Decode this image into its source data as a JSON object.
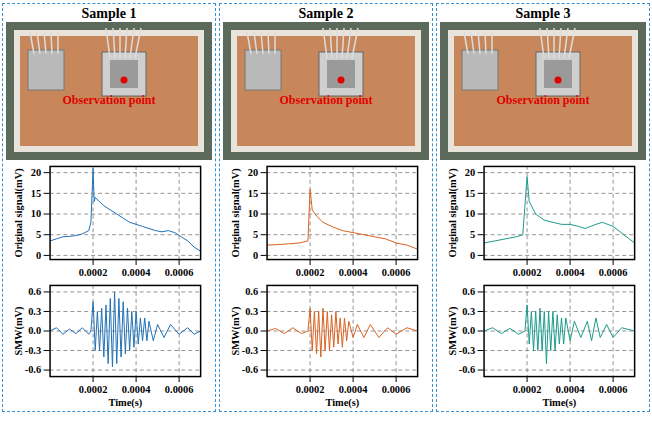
{
  "chart_data": [
    {
      "type": "line",
      "title": "Sample 1",
      "annotations": [
        "Observation point"
      ],
      "y_label": "Original signal(mV)",
      "color": "#1f6fb4",
      "grid": true,
      "xlim": [
        0,
        0.0007
      ],
      "xticks": [
        0.0002,
        0.0004,
        0.0006
      ],
      "ylim": [
        -1,
        21.5
      ],
      "yticks": [
        0,
        5,
        10,
        15,
        20
      ],
      "x": [
        0,
        3e-05,
        6e-05,
        9e-05,
        0.00012,
        0.00015,
        0.00018,
        0.00019,
        0.0002,
        0.000205,
        0.00021,
        0.00023,
        0.00025,
        0.00028,
        0.00031,
        0.00034,
        0.00037,
        0.0004,
        0.00043,
        0.00046,
        0.00049,
        0.00052,
        0.00055,
        0.00058,
        0.00061,
        0.00064,
        0.00067,
        0.0007
      ],
      "values": [
        3.5,
        4,
        4.5,
        4.6,
        4.8,
        5.2,
        6,
        8,
        21,
        13,
        14,
        13,
        12,
        11,
        10,
        9,
        8,
        7.5,
        7,
        6.5,
        6,
        5.7,
        6,
        5.5,
        4.5,
        3.5,
        2,
        1
      ]
    },
    {
      "type": "line",
      "x_label": "Time(s)",
      "y_label": "SMW(mV)",
      "color": "#1f6fb4",
      "grid": true,
      "xlim": [
        0,
        0.0007
      ],
      "xticks": [
        0.0002,
        0.0004,
        0.0006
      ],
      "ylim": [
        -0.7,
        0.7
      ],
      "yticks": [
        -0.6,
        -0.3,
        {
          "value": 0,
          "label": "0.0"
        },
        0.3,
        0.6
      ],
      "x": [
        0,
        3e-05,
        6e-05,
        9e-05,
        0.00012,
        0.00015,
        0.00018,
        0.00019,
        0.0002,
        0.00021,
        0.00022,
        0.00023,
        0.00024,
        0.00025,
        0.00026,
        0.00027,
        0.00028,
        0.00029,
        0.0003,
        0.00031,
        0.00032,
        0.00033,
        0.00034,
        0.00035,
        0.00036,
        0.00037,
        0.00038,
        0.00039,
        0.0004,
        0.00041,
        0.00042,
        0.00043,
        0.00044,
        0.00045,
        0.00046,
        0.00048,
        0.0005,
        0.00053,
        0.00056,
        0.0006,
        0.00064,
        0.00067,
        0.0007
      ],
      "values": [
        0,
        0.05,
        -0.05,
        0.03,
        -0.04,
        0.05,
        -0.05,
        0,
        0.45,
        -0.3,
        0.3,
        -0.3,
        0.35,
        -0.4,
        0.4,
        -0.5,
        0.5,
        -0.55,
        0.6,
        -0.5,
        0.5,
        -0.4,
        0.45,
        -0.35,
        0.35,
        -0.3,
        0.3,
        -0.25,
        0.3,
        -0.2,
        0.2,
        -0.15,
        0.2,
        -0.15,
        0.15,
        -0.15,
        0.1,
        -0.1,
        0.1,
        -0.05,
        0.05,
        -0.05,
        0
      ]
    },
    {
      "type": "line",
      "title": "Sample 2",
      "annotations": [
        "Observation point"
      ],
      "y_label": "Original signal(mV)",
      "color": "#d9601f",
      "grid": true,
      "xlim": [
        0,
        0.0007
      ],
      "xticks": [
        0.0002,
        0.0004,
        0.0006
      ],
      "ylim": [
        -1,
        21.5
      ],
      "yticks": [
        0,
        5,
        10,
        15,
        20
      ],
      "x": [
        0,
        5e-05,
        0.0001,
        0.00015,
        0.00019,
        0.0002,
        0.00021,
        0.00023,
        0.00026,
        0.0003,
        0.00035,
        0.0004,
        0.00045,
        0.0005,
        0.00055,
        0.0006,
        0.00065,
        0.0007
      ],
      "values": [
        2.5,
        2.6,
        2.8,
        3,
        3.5,
        16,
        11,
        9.5,
        8,
        7,
        6,
        5.5,
        5,
        4.5,
        4,
        3,
        2.5,
        1.5
      ]
    },
    {
      "type": "line",
      "x_label": "Time(s)",
      "y_label": "SMW(mV)",
      "color": "#d9601f",
      "grid": true,
      "xlim": [
        0,
        0.0007
      ],
      "xticks": [
        0.0002,
        0.0004,
        0.0006
      ],
      "ylim": [
        -0.7,
        0.7
      ],
      "yticks": [
        -0.6,
        -0.3,
        {
          "value": 0,
          "label": "0.0"
        },
        0.3,
        0.6
      ],
      "x": [
        0,
        4e-05,
        8e-05,
        0.00012,
        0.00016,
        0.00019,
        0.0002,
        0.00021,
        0.00022,
        0.00023,
        0.00024,
        0.00025,
        0.00026,
        0.00027,
        0.00028,
        0.00029,
        0.0003,
        0.00031,
        0.00032,
        0.00033,
        0.00034,
        0.00035,
        0.00036,
        0.00037,
        0.00038,
        0.0004,
        0.00042,
        0.00045,
        0.00048,
        0.00052,
        0.00056,
        0.0006,
        0.00065,
        0.0007
      ],
      "values": [
        0,
        0.04,
        -0.04,
        0.05,
        -0.04,
        0,
        0.35,
        -0.3,
        0.3,
        -0.35,
        0.3,
        -0.4,
        0.35,
        -0.3,
        0.3,
        -0.3,
        0.25,
        -0.25,
        0.3,
        -0.2,
        0.2,
        -0.25,
        0.2,
        -0.15,
        0.15,
        -0.1,
        0.1,
        -0.1,
        0.1,
        -0.1,
        0.05,
        -0.05,
        0.05,
        0
      ]
    },
    {
      "type": "line",
      "title": "Sample 3",
      "annotations": [
        "Observation point"
      ],
      "y_label": "Original signal(mV)",
      "color": "#1a9a8a",
      "grid": true,
      "xlim": [
        0,
        0.0007
      ],
      "xticks": [
        0.0002,
        0.0004,
        0.0006
      ],
      "ylim": [
        -1,
        21.5
      ],
      "yticks": [
        0,
        5,
        10,
        15,
        20
      ],
      "x": [
        0,
        5e-05,
        0.0001,
        0.00015,
        0.00018,
        0.0002,
        0.00021,
        0.00024,
        0.00028,
        0.00032,
        0.00036,
        0.0004,
        0.00044,
        0.00047,
        0.00052,
        0.00055,
        0.0006,
        0.00065,
        0.0007
      ],
      "values": [
        3,
        3.5,
        4,
        4.5,
        5,
        19,
        13,
        10,
        8.5,
        8,
        7.5,
        7.5,
        7,
        6.5,
        7.5,
        8,
        7,
        5,
        3
      ]
    },
    {
      "type": "line",
      "x_label": "Time(s)",
      "y_label": "SMW(mV)",
      "color": "#1a9a8a",
      "grid": true,
      "xlim": [
        0,
        0.0007
      ],
      "xticks": [
        0.0002,
        0.0004,
        0.0006
      ],
      "ylim": [
        -0.7,
        0.7
      ],
      "yticks": [
        -0.6,
        -0.3,
        {
          "value": 0,
          "label": "0.0"
        },
        0.3,
        0.6
      ],
      "x": [
        0,
        4e-05,
        8e-05,
        0.00012,
        0.00016,
        0.00019,
        0.0002,
        0.00021,
        0.00022,
        0.00023,
        0.00024,
        0.00025,
        0.00026,
        0.00027,
        0.00028,
        0.00029,
        0.0003,
        0.00031,
        0.00032,
        0.00033,
        0.00034,
        0.00035,
        0.00036,
        0.00037,
        0.00038,
        0.0004,
        0.00042,
        0.00045,
        0.00048,
        0.0005,
        0.00052,
        0.00054,
        0.00057,
        0.0006,
        0.00064,
        0.0007
      ],
      "values": [
        0,
        0.05,
        -0.04,
        0.04,
        -0.05,
        0,
        0.4,
        -0.2,
        0.3,
        -0.3,
        0.3,
        -0.3,
        0.35,
        -0.3,
        0.3,
        -0.5,
        0.3,
        -0.3,
        0.3,
        -0.3,
        0.25,
        -0.2,
        0.2,
        -0.2,
        0.2,
        -0.15,
        0.15,
        -0.1,
        0.15,
        -0.15,
        0.2,
        -0.1,
        0.1,
        -0.1,
        0.05,
        0
      ]
    }
  ]
}
